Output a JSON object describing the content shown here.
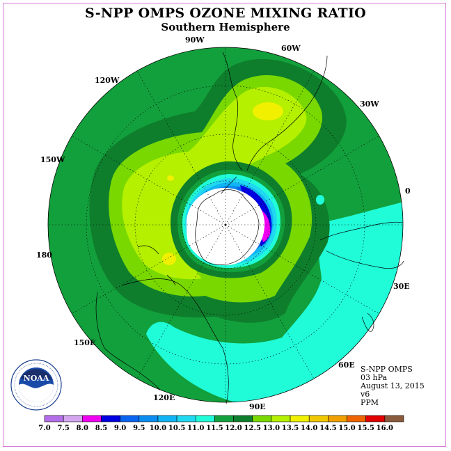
{
  "header": {
    "title": "S-NPP OMPS OZONE MIXING RATIO",
    "subtitle": "Southern Hemisphere"
  },
  "longitude_labels": [
    "90W",
    "60W",
    "30W",
    "0",
    "30E",
    "60E",
    "90E",
    "120E",
    "150E",
    "180",
    "150W",
    "120W"
  ],
  "info": {
    "product": "S-NPP OMPS",
    "level": "03 hPa",
    "date": "August 13, 2015",
    "version": "v6",
    "units": "PPM"
  },
  "logo": {
    "text": "NOAA",
    "ring_text": "NATIONAL OCEANIC AND ATMOSPHERIC ADMINISTRATION · U.S. DEPARTMENT OF COMMERCE"
  },
  "chart_data": {
    "type": "heatmap",
    "projection": "south polar stereographic",
    "colorbar": {
      "labels": [
        "7.0",
        "7.5",
        "8.0",
        "8.5",
        "9.0",
        "9.5",
        "10.0",
        "10.5",
        "11.0",
        "11.5",
        "12.0",
        "12.5",
        "13.0",
        "13.5",
        "14.0",
        "14.5",
        "15.0",
        "15.5",
        "16.0"
      ],
      "colors": [
        "#b36ee8",
        "#d4a6f0",
        "#f000f0",
        "#0000e0",
        "#0a64f0",
        "#0a8cf0",
        "#10b4f4",
        "#20d8f0",
        "#20fcd8",
        "#12a03c",
        "#0e7e2c",
        "#78d800",
        "#b4f000",
        "#f0f000",
        "#f0c800",
        "#f0a000",
        "#f06400",
        "#e00000",
        "#8b5a3c"
      ]
    }
  }
}
